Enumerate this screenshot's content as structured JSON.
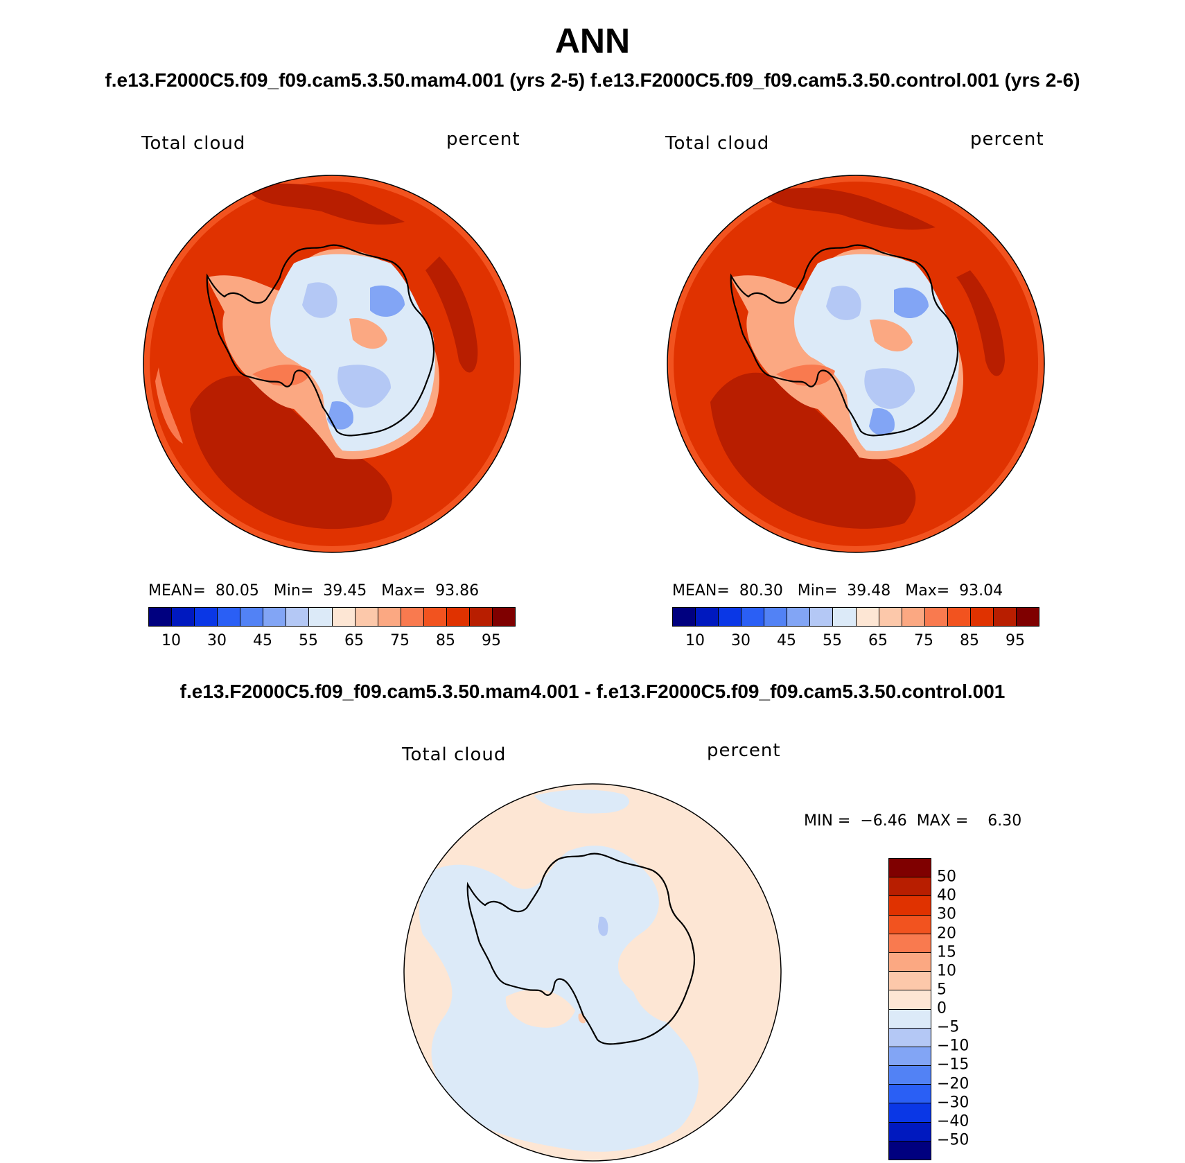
{
  "title": "ANN",
  "subtitle": "f.e13.F2000C5.f09_f09.cam5.3.50.mam4.001 (yrs 2-5) f.e13.F2000C5.f09_f09.cam5.3.50.control.001 (yrs 2-6)",
  "diff_title": "f.e13.F2000C5.f09_f09.cam5.3.50.mam4.001 - f.e13.F2000C5.f09_f09.cam5.3.50.control.001",
  "panels": [
    {
      "variable": "Total cloud",
      "units": "percent",
      "mean_label": "MEAN=",
      "mean_value": "80.05",
      "min_label": "Min=",
      "min_value": "39.45",
      "max_label": "Max=",
      "max_value": "93.86"
    },
    {
      "variable": "Total cloud",
      "units": "percent",
      "mean_label": "MEAN=",
      "mean_value": "80.30",
      "min_label": "Min=",
      "min_value": "39.48",
      "max_label": "Max=",
      "max_value": "93.04"
    }
  ],
  "diff_panel": {
    "variable": "Total cloud",
    "units": "percent",
    "min_label": "MIN =",
    "min_value": "−6.46",
    "max_label": "MAX =",
    "max_value": "6.30"
  },
  "colorbar_main": {
    "ticks": [
      "10",
      "30",
      "45",
      "55",
      "65",
      "75",
      "85",
      "95"
    ],
    "colors": [
      "#00007f",
      "#0019bf",
      "#0a37e6",
      "#2a5ff5",
      "#5282f5",
      "#82a5f5",
      "#b4c8f5",
      "#dceaf8",
      "#fde6d4",
      "#fcc8aa",
      "#fba882",
      "#f97a4f",
      "#f2531f",
      "#e03200",
      "#b81e00",
      "#7f0000"
    ]
  },
  "colorbar_diff": {
    "ticks": [
      "50",
      "40",
      "30",
      "20",
      "15",
      "10",
      "5",
      "0",
      "−5",
      "−10",
      "−15",
      "−20",
      "−30",
      "−40",
      "−50"
    ],
    "colors": [
      "#7f0000",
      "#b81e00",
      "#e03200",
      "#f2531f",
      "#f97a4f",
      "#fba882",
      "#fcc8aa",
      "#fde6d4",
      "#dceaf8",
      "#b4c8f5",
      "#82a5f5",
      "#5282f5",
      "#2a5ff5",
      "#0a37e6",
      "#0019bf",
      "#00007f"
    ]
  }
}
